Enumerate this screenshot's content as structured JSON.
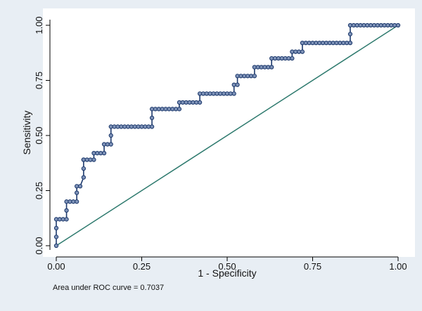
{
  "chart_data": {
    "type": "line",
    "title": "",
    "xlabel": "1 - Specificity",
    "ylabel": "Sensitivity",
    "xlim": [
      0,
      1
    ],
    "ylim": [
      0,
      1
    ],
    "x_ticks": [
      "0.00",
      "0.25",
      "0.50",
      "0.75",
      "1.00"
    ],
    "y_ticks": [
      "0.00",
      "0.25",
      "0.50",
      "0.75",
      "1.00"
    ],
    "grid": false,
    "annotation": "Area under ROC curve = 0.7037",
    "colors": {
      "roc": "#1f3b6e",
      "marker_fill": "#7f93b8",
      "reference": "#2e7a6e",
      "plot_bg": "#ffffff",
      "outer_bg": "#e8eef4"
    },
    "series": [
      {
        "kind": "roc",
        "x": [
          0,
          0,
          0,
          0,
          0.01,
          0.02,
          0.03,
          0.03,
          0.03,
          0.04,
          0.05,
          0.06,
          0.06,
          0.06,
          0.07,
          0.08,
          0.08,
          0.08,
          0.08,
          0.08,
          0.09,
          0.1,
          0.11,
          0.11,
          0.12,
          0.13,
          0.14,
          0.14,
          0.15,
          0.16,
          0.16,
          0.16,
          0.17,
          0.18,
          0.19,
          0.2,
          0.21,
          0.22,
          0.23,
          0.24,
          0.25,
          0.26,
          0.27,
          0.28,
          0.28,
          0.28,
          0.29,
          0.3,
          0.31,
          0.32,
          0.33,
          0.34,
          0.35,
          0.36,
          0.36,
          0.37,
          0.38,
          0.39,
          0.4,
          0.41,
          0.42,
          0.42,
          0.43,
          0.44,
          0.45,
          0.46,
          0.47,
          0.48,
          0.49,
          0.5,
          0.51,
          0.52,
          0.52,
          0.53,
          0.53,
          0.54,
          0.55,
          0.56,
          0.57,
          0.58,
          0.58,
          0.59,
          0.6,
          0.61,
          0.62,
          0.63,
          0.63,
          0.64,
          0.65,
          0.66,
          0.67,
          0.68,
          0.69,
          0.69,
          0.7,
          0.71,
          0.72,
          0.72,
          0.73,
          0.74,
          0.75,
          0.76,
          0.77,
          0.78,
          0.79,
          0.8,
          0.81,
          0.82,
          0.83,
          0.84,
          0.85,
          0.86,
          0.86,
          0.86,
          0.87,
          0.88,
          0.89,
          0.9,
          0.91,
          0.92,
          0.93,
          0.94,
          0.95,
          0.96,
          0.97,
          0.98,
          0.99,
          1.0
        ],
        "y": [
          0,
          0.04,
          0.08,
          0.12,
          0.12,
          0.12,
          0.12,
          0.16,
          0.2,
          0.2,
          0.2,
          0.2,
          0.24,
          0.27,
          0.27,
          0.31,
          0.35,
          0.39,
          0.39,
          0.39,
          0.39,
          0.39,
          0.39,
          0.42,
          0.42,
          0.42,
          0.42,
          0.46,
          0.46,
          0.46,
          0.5,
          0.54,
          0.54,
          0.54,
          0.54,
          0.54,
          0.54,
          0.54,
          0.54,
          0.54,
          0.54,
          0.54,
          0.54,
          0.54,
          0.58,
          0.62,
          0.62,
          0.62,
          0.62,
          0.62,
          0.62,
          0.62,
          0.62,
          0.62,
          0.65,
          0.65,
          0.65,
          0.65,
          0.65,
          0.65,
          0.65,
          0.69,
          0.69,
          0.69,
          0.69,
          0.69,
          0.69,
          0.69,
          0.69,
          0.69,
          0.69,
          0.69,
          0.73,
          0.73,
          0.77,
          0.77,
          0.77,
          0.77,
          0.77,
          0.77,
          0.81,
          0.81,
          0.81,
          0.81,
          0.81,
          0.81,
          0.85,
          0.85,
          0.85,
          0.85,
          0.85,
          0.85,
          0.85,
          0.88,
          0.88,
          0.88,
          0.88,
          0.92,
          0.92,
          0.92,
          0.92,
          0.92,
          0.92,
          0.92,
          0.92,
          0.92,
          0.92,
          0.92,
          0.92,
          0.92,
          0.92,
          0.92,
          0.96,
          1.0,
          1.0,
          1.0,
          1.0,
          1.0,
          1.0,
          1.0,
          1.0,
          1.0,
          1.0,
          1.0,
          1.0,
          1.0,
          1.0,
          1.0
        ]
      },
      {
        "kind": "reference",
        "x": [
          0,
          1
        ],
        "y": [
          0,
          1
        ]
      }
    ]
  }
}
